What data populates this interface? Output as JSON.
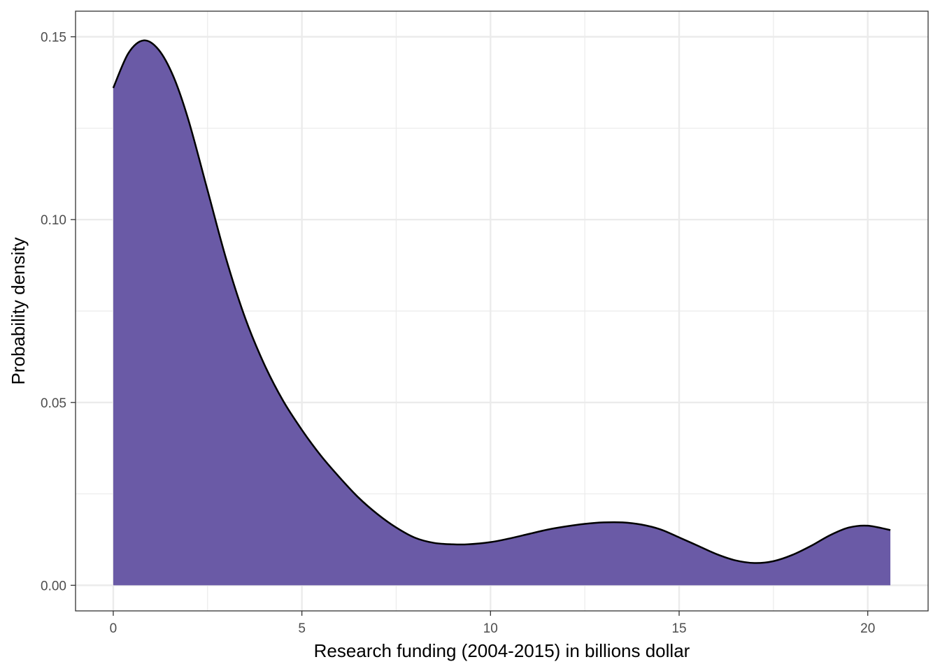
{
  "chart_data": {
    "type": "area",
    "title": "",
    "xlabel": "Research funding (2004-2015) in billions dollar",
    "ylabel": "Probability density",
    "xlim": [
      -1.0,
      21.6
    ],
    "ylim": [
      -0.007,
      0.157
    ],
    "x_ticks": [
      0,
      5,
      10,
      15,
      20
    ],
    "x_tick_labels": [
      "0",
      "5",
      "10",
      "15",
      "20"
    ],
    "y_ticks": [
      0.0,
      0.05,
      0.1,
      0.15
    ],
    "y_tick_labels": [
      "0.00",
      "0.05",
      "0.10",
      "0.15"
    ],
    "grid": true,
    "legend": "none",
    "colors": {
      "fill": "#6a5aa6",
      "line": "#000000",
      "grid": "#ebebeb",
      "panel_border": "#333333"
    },
    "series": [
      {
        "x": [
          0,
          0.4,
          0.8,
          1.2,
          1.6,
          2.0,
          2.5,
          3.0,
          3.5,
          4.0,
          4.5,
          5.0,
          5.5,
          6.0,
          6.5,
          7.0,
          7.5,
          8.0,
          8.5,
          9.0,
          9.4,
          10.0,
          10.5,
          11.0,
          11.5,
          12.0,
          12.5,
          13.0,
          13.5,
          14.0,
          14.5,
          15.0,
          15.5,
          16.0,
          16.5,
          17.0,
          17.5,
          18.0,
          18.5,
          19.0,
          19.5,
          20.0,
          20.6
        ],
        "y": [
          0.136,
          0.1455,
          0.149,
          0.1465,
          0.139,
          0.127,
          0.108,
          0.089,
          0.073,
          0.0605,
          0.0505,
          0.0425,
          0.0355,
          0.0295,
          0.024,
          0.0195,
          0.0158,
          0.013,
          0.0116,
          0.0112,
          0.0112,
          0.0118,
          0.0128,
          0.014,
          0.0152,
          0.0161,
          0.0168,
          0.0172,
          0.0172,
          0.0166,
          0.0153,
          0.0131,
          0.0108,
          0.0085,
          0.0068,
          0.0061,
          0.0066,
          0.0083,
          0.0108,
          0.0137,
          0.0158,
          0.0163,
          0.0151
        ]
      }
    ]
  }
}
